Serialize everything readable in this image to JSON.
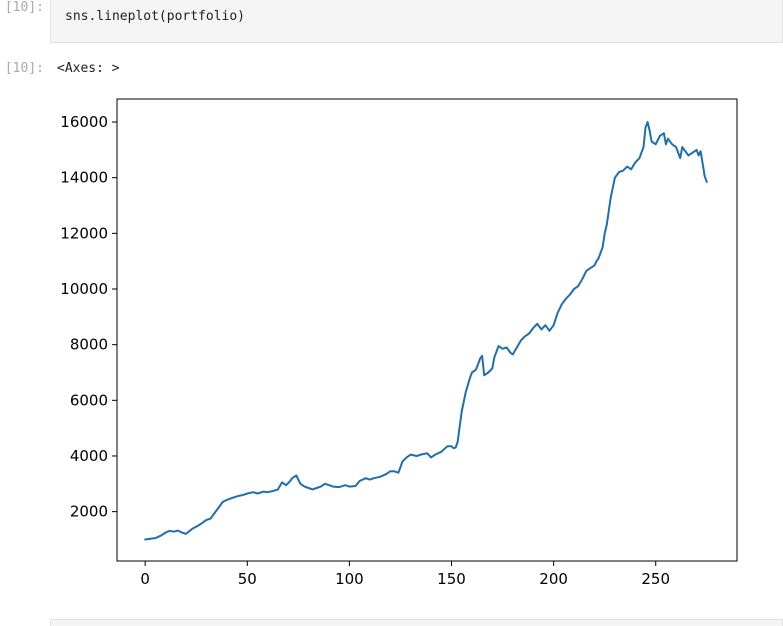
{
  "cell_in": {
    "prompt": "[10]:",
    "code": "sns.lineplot(portfolio)"
  },
  "cell_out": {
    "prompt": "[10]:",
    "text": "<Axes: >"
  },
  "colors": {
    "line": "#1f6fb0",
    "axes": "#000000",
    "cell_bg": "#f5f5f5",
    "prompt": "#a9a9a9"
  },
  "chart_data": {
    "type": "line",
    "title": "",
    "xlabel": "",
    "ylabel": "",
    "xlim": [
      -13.8,
      289.8
    ],
    "ylim": [
      226,
      16828
    ],
    "xticks": [
      0,
      50,
      100,
      150,
      200,
      250
    ],
    "xtick_labels": [
      "0",
      "50",
      "100",
      "150",
      "200",
      "250"
    ],
    "yticks": [
      2000,
      4000,
      6000,
      8000,
      10000,
      12000,
      14000,
      16000
    ],
    "ytick_labels": [
      "2000",
      "4000",
      "6000",
      "8000",
      "10000",
      "12000",
      "14000",
      "16000"
    ],
    "grid": false,
    "legend": "none",
    "series": [
      {
        "x": [
          0,
          3,
          5,
          8,
          10,
          12,
          14,
          16,
          18,
          20,
          23,
          26,
          28,
          30,
          32,
          34,
          36,
          38,
          40,
          42,
          45,
          48,
          50,
          53,
          55,
          58,
          60,
          63,
          65,
          67,
          69,
          71,
          72,
          74,
          76,
          78,
          80,
          82,
          84,
          86,
          88,
          90,
          92,
          95,
          98,
          100,
          103,
          105,
          108,
          110,
          112,
          115,
          118,
          120,
          122,
          124,
          126,
          128,
          130,
          133,
          135,
          138,
          140,
          142,
          145,
          148,
          150,
          151,
          152,
          153,
          155,
          157,
          159,
          160,
          162,
          164,
          165,
          166,
          168,
          170,
          171,
          173,
          175,
          177,
          179,
          180,
          182,
          184,
          186,
          188,
          190,
          192,
          194,
          196,
          198,
          200,
          202,
          204,
          206,
          208,
          210,
          212,
          214,
          216,
          218,
          220,
          221,
          222,
          224,
          225,
          226,
          228,
          230,
          232,
          234,
          236,
          238,
          240,
          242,
          244,
          245,
          246,
          247,
          248,
          250,
          252,
          254,
          255,
          256,
          258,
          260,
          262,
          263,
          264,
          266,
          268,
          270,
          271,
          272,
          273,
          274,
          275
        ],
        "y": [
          1000,
          1030,
          1050,
          1150,
          1250,
          1310,
          1280,
          1320,
          1250,
          1200,
          1380,
          1500,
          1600,
          1700,
          1750,
          1950,
          2150,
          2350,
          2420,
          2480,
          2550,
          2600,
          2650,
          2700,
          2650,
          2720,
          2700,
          2750,
          2800,
          3050,
          2950,
          3100,
          3200,
          3300,
          3000,
          2900,
          2850,
          2800,
          2850,
          2900,
          3000,
          2950,
          2900,
          2880,
          2950,
          2900,
          2920,
          3100,
          3200,
          3150,
          3200,
          3250,
          3350,
          3450,
          3450,
          3400,
          3800,
          3950,
          4050,
          4000,
          4050,
          4100,
          3950,
          4050,
          4150,
          4350,
          4350,
          4280,
          4300,
          4500,
          5600,
          6300,
          6800,
          7000,
          7100,
          7500,
          7600,
          6900,
          7000,
          7150,
          7550,
          7950,
          7850,
          7900,
          7700,
          7650,
          7900,
          8150,
          8300,
          8400,
          8600,
          8750,
          8550,
          8700,
          8500,
          8700,
          9150,
          9450,
          9650,
          9800,
          10000,
          10100,
          10350,
          10650,
          10750,
          10850,
          11000,
          11100,
          11500,
          12000,
          12300,
          13300,
          14000,
          14200,
          14250,
          14400,
          14300,
          14550,
          14700,
          15100,
          15800,
          16000,
          15700,
          15300,
          15200,
          15500,
          15600,
          15200,
          15400,
          15200,
          15100,
          14700,
          15100,
          15000,
          14800,
          14900,
          15000,
          14800,
          14950,
          14500,
          14050,
          13850
        ]
      }
    ]
  }
}
